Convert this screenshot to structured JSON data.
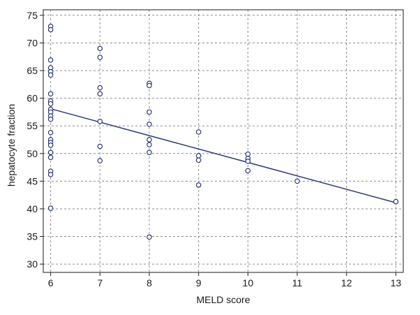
{
  "chart_data": {
    "type": "scatter",
    "xlabel": "MELD score",
    "ylabel": "hepatocyte fraction",
    "xlim": [
      5.85,
      13.15
    ],
    "ylim": [
      28.5,
      76
    ],
    "x_ticks": [
      6,
      7,
      8,
      9,
      10,
      11,
      12,
      13
    ],
    "y_ticks": [
      30,
      35,
      40,
      45,
      50,
      55,
      60,
      65,
      70,
      75
    ],
    "grid": true,
    "points": [
      {
        "x": 6,
        "y": 73.0
      },
      {
        "x": 6,
        "y": 72.4
      },
      {
        "x": 6,
        "y": 66.9
      },
      {
        "x": 6,
        "y": 65.5
      },
      {
        "x": 6,
        "y": 64.8
      },
      {
        "x": 6,
        "y": 64.2
      },
      {
        "x": 6,
        "y": 60.8
      },
      {
        "x": 6,
        "y": 59.5
      },
      {
        "x": 6,
        "y": 59.0
      },
      {
        "x": 6,
        "y": 58.0
      },
      {
        "x": 6,
        "y": 57.5
      },
      {
        "x": 6,
        "y": 56.8
      },
      {
        "x": 6,
        "y": 56.2
      },
      {
        "x": 6,
        "y": 53.8
      },
      {
        "x": 6,
        "y": 52.5
      },
      {
        "x": 6,
        "y": 52.0
      },
      {
        "x": 6,
        "y": 51.5
      },
      {
        "x": 6,
        "y": 50.2
      },
      {
        "x": 6,
        "y": 49.3
      },
      {
        "x": 6,
        "y": 46.8
      },
      {
        "x": 6,
        "y": 46.2
      },
      {
        "x": 6,
        "y": 40.1
      },
      {
        "x": 7,
        "y": 69.0
      },
      {
        "x": 7,
        "y": 67.4
      },
      {
        "x": 7,
        "y": 61.9
      },
      {
        "x": 7,
        "y": 60.8
      },
      {
        "x": 7,
        "y": 55.8
      },
      {
        "x": 7,
        "y": 51.3
      },
      {
        "x": 7,
        "y": 48.7
      },
      {
        "x": 8,
        "y": 62.7
      },
      {
        "x": 8,
        "y": 62.3
      },
      {
        "x": 8,
        "y": 57.5
      },
      {
        "x": 8,
        "y": 55.3
      },
      {
        "x": 8,
        "y": 52.5
      },
      {
        "x": 8,
        "y": 51.6
      },
      {
        "x": 8,
        "y": 50.2
      },
      {
        "x": 8,
        "y": 34.9
      },
      {
        "x": 9,
        "y": 53.9
      },
      {
        "x": 9,
        "y": 49.6
      },
      {
        "x": 9,
        "y": 48.8
      },
      {
        "x": 9,
        "y": 44.3
      },
      {
        "x": 10,
        "y": 49.9
      },
      {
        "x": 10,
        "y": 49.1
      },
      {
        "x": 10,
        "y": 48.6
      },
      {
        "x": 10,
        "y": 46.9
      },
      {
        "x": 11,
        "y": 45.0
      },
      {
        "x": 13,
        "y": 41.3
      }
    ],
    "regression_line": {
      "x": [
        6,
        13
      ],
      "y": [
        58.1,
        41.1
      ]
    },
    "colors": {
      "line": "#2b3a7a",
      "marker": "#1c2a6e",
      "grid": "#8c8c8c",
      "axis": "#1a1a1a"
    }
  }
}
